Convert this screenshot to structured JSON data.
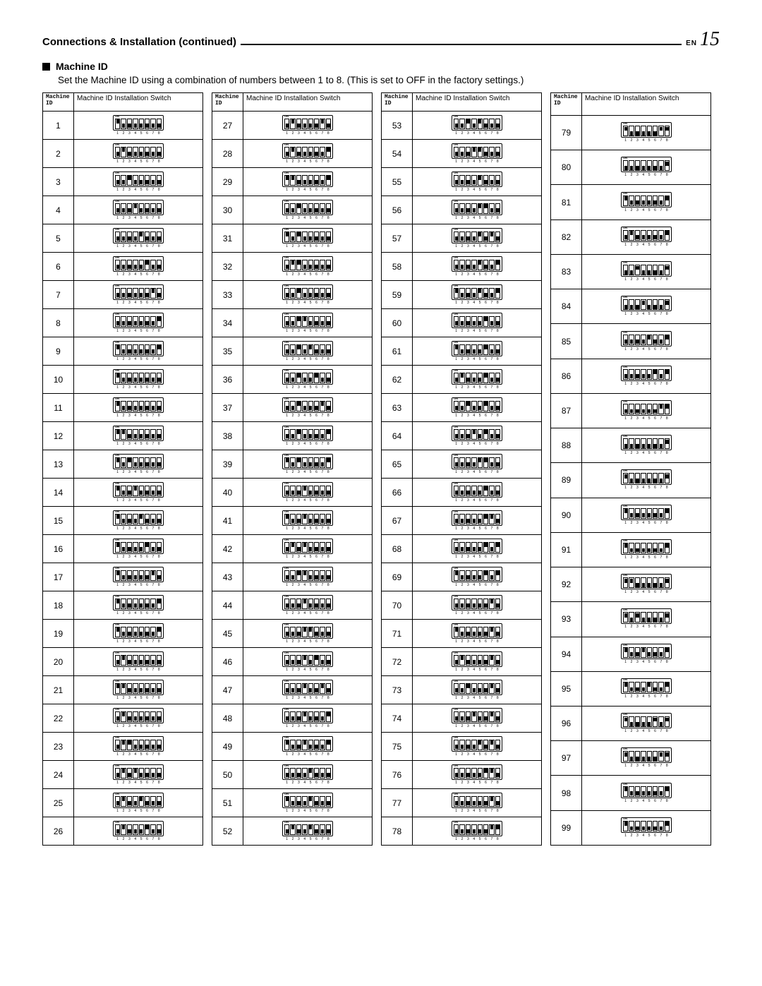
{
  "header": {
    "title": "Connections & Installation (continued)",
    "lang": "EN",
    "page": "15"
  },
  "section": {
    "subtitle": "Machine ID",
    "description": "Set the Machine ID using a combination of numbers between 1 to 8. (This is set to OFF in the factory settings.)"
  },
  "table": {
    "head_left": "Machine\nID",
    "head_right": "Machine ID Installation Switch",
    "dip_on_label": "ON",
    "dip_numbers": [
      "1",
      "2",
      "3",
      "4",
      "5",
      "6",
      "7",
      "8"
    ],
    "id_range": {
      "start": 1,
      "end": 99
    },
    "columns_breaks": [
      1,
      27,
      53,
      79,
      100
    ]
  },
  "style": {
    "page_bg": "#ffffff",
    "text_color": "#000000",
    "border_color": "#000000",
    "knob_color": "#000000"
  }
}
